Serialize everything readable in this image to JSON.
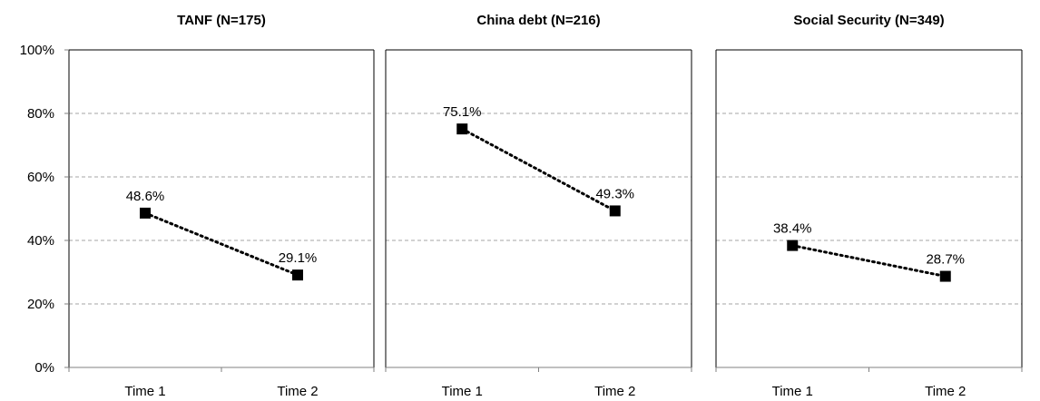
{
  "chart_data": [
    {
      "type": "line",
      "title": "TANF (N=175)",
      "categories": [
        "Time 1",
        "Time 2"
      ],
      "values": [
        48.6,
        29.1
      ],
      "data_labels": [
        "48.6%",
        "29.1%"
      ],
      "ylim": [
        0,
        100
      ],
      "yticks": [
        0,
        20,
        40,
        60,
        80,
        100
      ],
      "ytick_labels": [
        "0%",
        "20%",
        "40%",
        "60%",
        "80%",
        "100%"
      ],
      "grid": true,
      "line_style": "dotted",
      "marker": "square"
    },
    {
      "type": "line",
      "title": "China debt (N=216)",
      "categories": [
        "Time 1",
        "Time 2"
      ],
      "values": [
        75.1,
        49.3
      ],
      "data_labels": [
        "75.1%",
        "49.3%"
      ],
      "ylim": [
        0,
        100
      ],
      "yticks": [
        0,
        20,
        40,
        60,
        80,
        100
      ],
      "grid": true,
      "line_style": "dotted",
      "marker": "square"
    },
    {
      "type": "line",
      "title": "Social Security (N=349)",
      "categories": [
        "Time 1",
        "Time 2"
      ],
      "values": [
        38.4,
        28.7
      ],
      "data_labels": [
        "38.4%",
        "28.7%"
      ],
      "ylim": [
        0,
        100
      ],
      "yticks": [
        0,
        20,
        40,
        60,
        80,
        100
      ],
      "grid": true,
      "line_style": "dotted",
      "marker": "square"
    }
  ],
  "colors": {
    "line": "#000000",
    "marker": "#000000",
    "grid": "#a6a6a6",
    "frame": "#000000"
  }
}
